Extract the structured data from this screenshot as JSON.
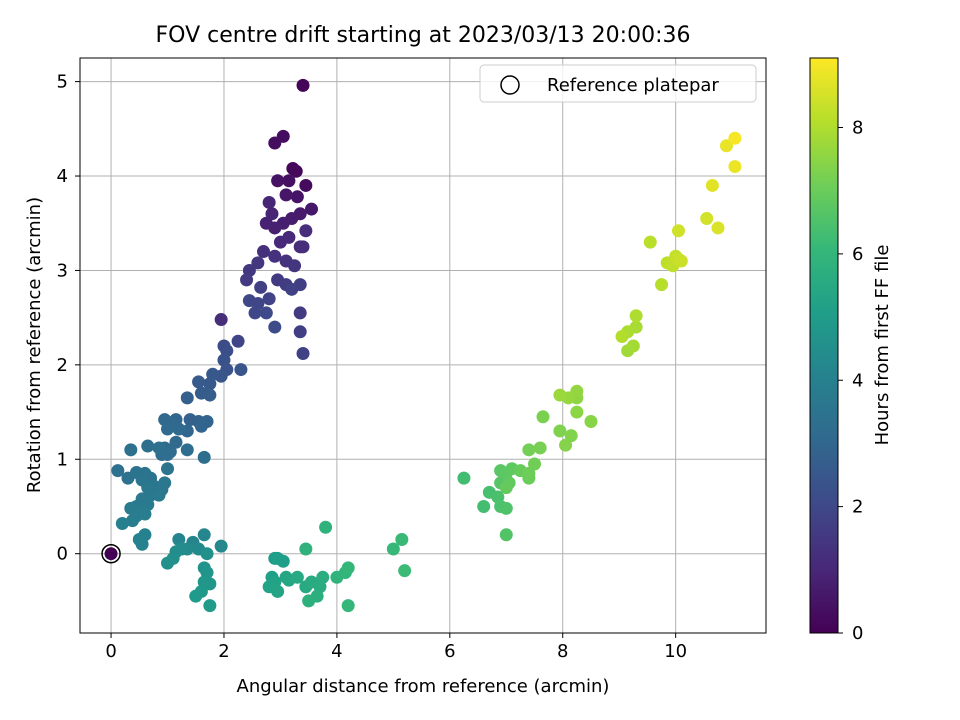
{
  "chart_data": {
    "type": "scatter",
    "title": "FOV centre drift starting at 2023/03/13 20:00:36",
    "xlabel": "Angular distance from reference (arcmin)",
    "ylabel": "Rotation from reference (arcmin)",
    "xlim": [
      -0.55,
      11.6
    ],
    "ylim": [
      -0.84,
      5.25
    ],
    "xticks": [
      "0",
      "2",
      "4",
      "6",
      "8",
      "10"
    ],
    "yticks": [
      "0",
      "1",
      "2",
      "3",
      "4",
      "5"
    ],
    "grid": true,
    "legend": {
      "placement": "top-right",
      "entries": [
        "Reference platepar"
      ]
    },
    "reference_point": {
      "x": 0,
      "y": 0
    },
    "colorbar": {
      "label": "Hours from first FF file",
      "range": [
        0,
        9.1
      ],
      "ticks": [
        "0",
        "2",
        "4",
        "6",
        "8"
      ],
      "colormap": "viridis",
      "colors": [
        "#440154",
        "#482878",
        "#3e4989",
        "#31688e",
        "#26828e",
        "#1f9e89",
        "#35b779",
        "#6ece58",
        "#b5de2b",
        "#fde725"
      ]
    },
    "points": [
      [
        0.0,
        0.0,
        0.0
      ],
      [
        3.4,
        4.96,
        0.1
      ],
      [
        3.22,
        4.08,
        0.15
      ],
      [
        3.28,
        4.05,
        0.2
      ],
      [
        3.45,
        3.9,
        0.25
      ],
      [
        3.05,
        4.42,
        0.3
      ],
      [
        2.9,
        4.35,
        0.35
      ],
      [
        3.15,
        3.95,
        0.4
      ],
      [
        2.95,
        3.95,
        0.45
      ],
      [
        3.3,
        3.78,
        0.5
      ],
      [
        3.1,
        3.8,
        0.55
      ],
      [
        3.55,
        3.65,
        0.6
      ],
      [
        3.35,
        3.6,
        0.65
      ],
      [
        3.2,
        3.55,
        0.7
      ],
      [
        3.05,
        3.5,
        0.75
      ],
      [
        2.9,
        3.45,
        0.8
      ],
      [
        2.75,
        3.5,
        0.85
      ],
      [
        2.85,
        3.6,
        0.9
      ],
      [
        2.8,
        3.72,
        0.95
      ],
      [
        3.15,
        3.35,
        1.0
      ],
      [
        3.0,
        3.3,
        1.05
      ],
      [
        3.35,
        3.25,
        1.1
      ],
      [
        3.45,
        3.42,
        1.15
      ],
      [
        3.4,
        3.25,
        1.2
      ],
      [
        2.7,
        3.2,
        1.25
      ],
      [
        2.9,
        3.15,
        1.3
      ],
      [
        3.1,
        3.1,
        1.35
      ],
      [
        3.25,
        3.05,
        1.4
      ],
      [
        2.6,
        3.08,
        1.45
      ],
      [
        2.45,
        3.0,
        1.5
      ],
      [
        2.4,
        2.9,
        1.55
      ],
      [
        2.95,
        2.9,
        1.6
      ],
      [
        3.1,
        2.85,
        1.65
      ],
      [
        3.35,
        2.85,
        1.7
      ],
      [
        2.65,
        2.82,
        1.75
      ],
      [
        3.2,
        2.8,
        1.8
      ],
      [
        2.8,
        2.7,
        1.85
      ],
      [
        2.6,
        2.65,
        1.9
      ],
      [
        2.45,
        2.68,
        1.95
      ],
      [
        2.55,
        2.55,
        2.0
      ],
      [
        2.75,
        2.55,
        2.05
      ],
      [
        2.9,
        2.4,
        2.1
      ],
      [
        3.35,
        2.55,
        1.6
      ],
      [
        3.35,
        2.35,
        1.7
      ],
      [
        3.4,
        2.12,
        1.8
      ],
      [
        1.95,
        2.48,
        1.2
      ],
      [
        2.25,
        2.25,
        1.9
      ],
      [
        2.0,
        2.2,
        2.1
      ],
      [
        2.05,
        2.15,
        2.2
      ],
      [
        2.0,
        2.05,
        2.3
      ],
      [
        2.05,
        1.95,
        2.35
      ],
      [
        2.3,
        1.95,
        2.4
      ],
      [
        1.95,
        1.88,
        2.45
      ],
      [
        1.8,
        1.9,
        2.5
      ],
      [
        1.75,
        1.8,
        2.55
      ],
      [
        1.55,
        1.82,
        2.6
      ],
      [
        1.6,
        1.7,
        2.65
      ],
      [
        1.75,
        1.68,
        2.7
      ],
      [
        1.35,
        1.65,
        2.75
      ],
      [
        1.4,
        1.42,
        2.8
      ],
      [
        1.55,
        1.4,
        2.85
      ],
      [
        1.7,
        1.4,
        2.9
      ],
      [
        1.6,
        1.35,
        2.95
      ],
      [
        1.35,
        1.3,
        3.0
      ],
      [
        1.15,
        1.42,
        3.0
      ],
      [
        0.95,
        1.42,
        3.05
      ],
      [
        1.1,
        1.38,
        3.05
      ],
      [
        1.0,
        1.32,
        3.1
      ],
      [
        1.2,
        1.32,
        3.1
      ],
      [
        1.15,
        1.18,
        3.15
      ],
      [
        0.95,
        1.12,
        3.15
      ],
      [
        1.05,
        1.08,
        3.2
      ],
      [
        0.9,
        1.05,
        3.2
      ],
      [
        1.0,
        1.05,
        3.25
      ],
      [
        1.35,
        1.1,
        3.25
      ],
      [
        1.65,
        1.02,
        3.3
      ],
      [
        0.65,
        1.14,
        3.3
      ],
      [
        0.85,
        1.12,
        3.35
      ],
      [
        0.35,
        1.1,
        3.35
      ],
      [
        0.12,
        0.88,
        3.4
      ],
      [
        0.3,
        0.8,
        3.4
      ],
      [
        0.45,
        0.86,
        3.45
      ],
      [
        0.6,
        0.85,
        3.45
      ],
      [
        0.7,
        0.8,
        3.5
      ],
      [
        1.0,
        0.9,
        3.5
      ],
      [
        0.55,
        0.78,
        3.55
      ],
      [
        0.75,
        0.72,
        3.55
      ],
      [
        0.95,
        0.75,
        3.6
      ],
      [
        0.9,
        0.68,
        3.6
      ],
      [
        0.65,
        0.7,
        3.65
      ],
      [
        0.7,
        0.62,
        3.65
      ],
      [
        0.85,
        0.62,
        3.7
      ],
      [
        0.55,
        0.58,
        3.7
      ],
      [
        0.65,
        0.52,
        3.75
      ],
      [
        0.45,
        0.5,
        3.75
      ],
      [
        0.35,
        0.48,
        3.8
      ],
      [
        0.55,
        0.45,
        3.8
      ],
      [
        0.45,
        0.4,
        3.85
      ],
      [
        0.6,
        0.42,
        3.85
      ],
      [
        0.38,
        0.35,
        3.9
      ],
      [
        0.2,
        0.32,
        3.95
      ],
      [
        0.6,
        0.2,
        4.0
      ],
      [
        0.55,
        0.1,
        4.05
      ],
      [
        0.5,
        0.15,
        4.05
      ],
      [
        1.2,
        0.15,
        4.1
      ],
      [
        1.45,
        0.12,
        4.15
      ],
      [
        1.65,
        0.2,
        4.2
      ],
      [
        1.95,
        0.08,
        4.25
      ],
      [
        1.55,
        0.05,
        4.3
      ],
      [
        1.35,
        0.05,
        4.35
      ],
      [
        1.25,
        0.05,
        4.4
      ],
      [
        1.15,
        0.02,
        4.45
      ],
      [
        1.1,
        -0.05,
        4.5
      ],
      [
        1.0,
        -0.1,
        4.55
      ],
      [
        1.7,
        0.0,
        4.6
      ],
      [
        1.65,
        -0.15,
        4.65
      ],
      [
        1.7,
        -0.2,
        4.7
      ],
      [
        1.65,
        -0.3,
        4.75
      ],
      [
        1.75,
        -0.32,
        4.8
      ],
      [
        1.6,
        -0.4,
        4.85
      ],
      [
        1.5,
        -0.45,
        4.9
      ],
      [
        1.75,
        -0.55,
        4.95
      ],
      [
        2.9,
        -0.05,
        5.0
      ],
      [
        3.05,
        -0.08,
        5.05
      ],
      [
        2.95,
        -0.05,
        5.1
      ],
      [
        2.85,
        -0.25,
        5.15
      ],
      [
        2.9,
        -0.3,
        5.2
      ],
      [
        2.8,
        -0.35,
        5.25
      ],
      [
        2.95,
        -0.4,
        5.3
      ],
      [
        3.1,
        -0.25,
        5.35
      ],
      [
        3.15,
        -0.28,
        5.4
      ],
      [
        3.3,
        -0.25,
        5.45
      ],
      [
        3.45,
        -0.35,
        5.5
      ],
      [
        3.55,
        -0.3,
        5.55
      ],
      [
        3.7,
        -0.35,
        5.6
      ],
      [
        3.75,
        -0.25,
        5.65
      ],
      [
        3.65,
        -0.45,
        5.7
      ],
      [
        3.5,
        -0.5,
        5.75
      ],
      [
        3.45,
        0.05,
        5.8
      ],
      [
        3.8,
        0.28,
        5.85
      ],
      [
        4.0,
        -0.25,
        5.9
      ],
      [
        4.15,
        -0.2,
        5.95
      ],
      [
        4.2,
        -0.15,
        6.0
      ],
      [
        4.2,
        -0.55,
        6.05
      ],
      [
        5.0,
        0.05,
        6.1
      ],
      [
        5.15,
        0.15,
        6.15
      ],
      [
        5.2,
        -0.18,
        6.2
      ],
      [
        6.25,
        0.8,
        6.3
      ],
      [
        6.6,
        0.5,
        6.35
      ],
      [
        6.7,
        0.65,
        6.4
      ],
      [
        6.85,
        0.6,
        6.45
      ],
      [
        6.9,
        0.5,
        6.5
      ],
      [
        7.0,
        0.48,
        6.55
      ],
      [
        7.0,
        0.2,
        6.6
      ],
      [
        6.9,
        0.75,
        6.65
      ],
      [
        6.9,
        0.88,
        6.7
      ],
      [
        7.0,
        0.85,
        6.75
      ],
      [
        7.1,
        0.9,
        6.8
      ],
      [
        7.05,
        0.75,
        6.85
      ],
      [
        7.0,
        0.7,
        6.9
      ],
      [
        7.25,
        0.88,
        6.95
      ],
      [
        7.4,
        0.8,
        7.0
      ],
      [
        7.4,
        0.85,
        7.05
      ],
      [
        7.5,
        0.95,
        7.1
      ],
      [
        7.4,
        1.1,
        7.15
      ],
      [
        7.6,
        1.12,
        7.2
      ],
      [
        7.65,
        1.45,
        7.25
      ],
      [
        7.95,
        1.3,
        7.3
      ],
      [
        8.15,
        1.25,
        7.35
      ],
      [
        8.05,
        1.15,
        7.4
      ],
      [
        8.5,
        1.4,
        7.45
      ],
      [
        8.25,
        1.5,
        7.5
      ],
      [
        8.25,
        1.65,
        7.55
      ],
      [
        8.25,
        1.72,
        7.6
      ],
      [
        8.1,
        1.65,
        7.65
      ],
      [
        7.95,
        1.68,
        7.7
      ],
      [
        9.15,
        2.15,
        7.8
      ],
      [
        9.25,
        2.2,
        7.85
      ],
      [
        9.3,
        2.4,
        7.9
      ],
      [
        9.15,
        2.35,
        7.95
      ],
      [
        9.3,
        2.52,
        8.0
      ],
      [
        9.05,
        2.3,
        8.05
      ],
      [
        9.75,
        2.85,
        8.1
      ],
      [
        9.55,
        3.3,
        8.15
      ],
      [
        9.85,
        3.08,
        8.2
      ],
      [
        9.95,
        3.05,
        8.25
      ],
      [
        10.0,
        3.15,
        8.3
      ],
      [
        10.05,
        3.12,
        8.35
      ],
      [
        10.1,
        3.1,
        8.4
      ],
      [
        10.05,
        3.42,
        8.45
      ],
      [
        10.55,
        3.55,
        8.5
      ],
      [
        10.75,
        3.45,
        8.6
      ],
      [
        10.65,
        3.9,
        8.7
      ],
      [
        10.9,
        4.32,
        8.8
      ],
      [
        11.05,
        4.1,
        8.85
      ],
      [
        11.05,
        4.4,
        9.0
      ]
    ]
  }
}
